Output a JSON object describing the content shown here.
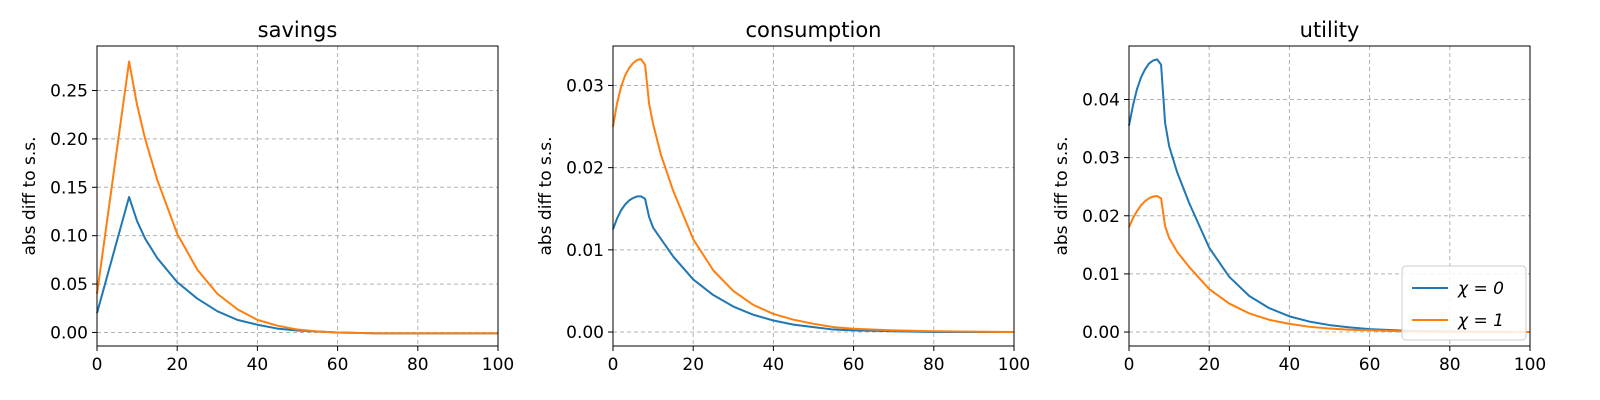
{
  "colors": {
    "chi0": "#1f77b4",
    "chi1": "#ff7f0e",
    "grid": "#b0b0b0"
  },
  "legend": {
    "placement": "bottom-right of third panel",
    "entries": [
      "χ = 0",
      "χ = 1"
    ]
  },
  "chart_data": [
    {
      "type": "line",
      "title": "savings",
      "xlabel": "",
      "ylabel": "abs diff to s.s.",
      "xlim": [
        0,
        100
      ],
      "ylim": [
        -0.014,
        0.296
      ],
      "xticks": [
        0,
        20,
        40,
        60,
        80,
        100
      ],
      "yticks": [
        0.0,
        0.05,
        0.1,
        0.15,
        0.2,
        0.25
      ],
      "ytick_labels": [
        "0.00",
        "0.05",
        "0.10",
        "0.15",
        "0.20",
        "0.25"
      ],
      "grid": true,
      "series": [
        {
          "name": "χ = 0",
          "color_key": "chi0",
          "points": [
            [
              0,
              0.02
            ],
            [
              2,
              0.05
            ],
            [
              4,
              0.08
            ],
            [
              6,
              0.11
            ],
            [
              8,
              0.14
            ],
            [
              10,
              0.115
            ],
            [
              12,
              0.097
            ],
            [
              15,
              0.077
            ],
            [
              20,
              0.052
            ],
            [
              25,
              0.035
            ],
            [
              30,
              0.022
            ],
            [
              35,
              0.013
            ],
            [
              40,
              0.008
            ],
            [
              45,
              0.004
            ],
            [
              50,
              0.002
            ],
            [
              60,
              0.0
            ],
            [
              70,
              -0.001
            ],
            [
              80,
              -0.001
            ],
            [
              100,
              -0.001
            ]
          ]
        },
        {
          "name": "χ = 1",
          "color_key": "chi1",
          "points": [
            [
              0,
              0.04
            ],
            [
              2,
              0.1
            ],
            [
              4,
              0.16
            ],
            [
              6,
              0.22
            ],
            [
              8,
              0.28
            ],
            [
              10,
              0.235
            ],
            [
              12,
              0.2
            ],
            [
              15,
              0.158
            ],
            [
              20,
              0.102
            ],
            [
              25,
              0.065
            ],
            [
              30,
              0.04
            ],
            [
              35,
              0.024
            ],
            [
              40,
              0.013
            ],
            [
              45,
              0.007
            ],
            [
              50,
              0.003
            ],
            [
              55,
              0.001
            ],
            [
              60,
              0.0
            ],
            [
              70,
              -0.001
            ],
            [
              80,
              -0.001
            ],
            [
              100,
              -0.001
            ]
          ]
        }
      ]
    },
    {
      "type": "line",
      "title": "consumption",
      "xlabel": "",
      "ylabel": "abs diff to s.s.",
      "xlim": [
        0,
        100
      ],
      "ylim": [
        -0.0017,
        0.0348
      ],
      "xticks": [
        0,
        20,
        40,
        60,
        80,
        100
      ],
      "yticks": [
        0.0,
        0.01,
        0.02,
        0.03
      ],
      "ytick_labels": [
        "0.00",
        "0.01",
        "0.02",
        "0.03"
      ],
      "grid": true,
      "series": [
        {
          "name": "χ = 0",
          "color_key": "chi0",
          "points": [
            [
              0,
              0.0125
            ],
            [
              1,
              0.0138
            ],
            [
              2,
              0.0148
            ],
            [
              3,
              0.0155
            ],
            [
              4,
              0.016
            ],
            [
              5,
              0.0163
            ],
            [
              6,
              0.0165
            ],
            [
              7,
              0.0165
            ],
            [
              8,
              0.0162
            ],
            [
              9,
              0.014
            ],
            [
              10,
              0.0127
            ],
            [
              12,
              0.0113
            ],
            [
              15,
              0.0092
            ],
            [
              20,
              0.0064
            ],
            [
              25,
              0.0045
            ],
            [
              30,
              0.0031
            ],
            [
              35,
              0.0021
            ],
            [
              40,
              0.0014
            ],
            [
              45,
              0.0009
            ],
            [
              50,
              0.0006
            ],
            [
              55,
              0.0003
            ],
            [
              60,
              0.0002
            ],
            [
              70,
              0.0001
            ],
            [
              80,
              0.0
            ],
            [
              100,
              0.0
            ]
          ]
        },
        {
          "name": "χ = 1",
          "color_key": "chi1",
          "points": [
            [
              0,
              0.025
            ],
            [
              1,
              0.0278
            ],
            [
              2,
              0.0298
            ],
            [
              3,
              0.0312
            ],
            [
              4,
              0.0321
            ],
            [
              5,
              0.0327
            ],
            [
              6,
              0.0331
            ],
            [
              7,
              0.0332
            ],
            [
              8,
              0.0325
            ],
            [
              9,
              0.0278
            ],
            [
              10,
              0.0253
            ],
            [
              12,
              0.0215
            ],
            [
              15,
              0.0172
            ],
            [
              20,
              0.0113
            ],
            [
              25,
              0.0075
            ],
            [
              30,
              0.005
            ],
            [
              35,
              0.0033
            ],
            [
              40,
              0.0022
            ],
            [
              45,
              0.0015
            ],
            [
              50,
              0.001
            ],
            [
              55,
              0.0006
            ],
            [
              60,
              0.0004
            ],
            [
              70,
              0.0002
            ],
            [
              80,
              0.0001
            ],
            [
              100,
              0.0
            ]
          ]
        }
      ]
    },
    {
      "type": "line",
      "title": "utility",
      "xlabel": "",
      "ylabel": "abs diff to s.s.",
      "xlim": [
        0,
        100
      ],
      "ylim": [
        -0.0024,
        0.0492
      ],
      "xticks": [
        0,
        20,
        40,
        60,
        80,
        100
      ],
      "yticks": [
        0.0,
        0.01,
        0.02,
        0.03,
        0.04
      ],
      "ytick_labels": [
        "0.00",
        "0.01",
        "0.02",
        "0.03",
        "0.04"
      ],
      "grid": true,
      "series": [
        {
          "name": "χ = 0",
          "color_key": "chi0",
          "points": [
            [
              0,
              0.0355
            ],
            [
              1,
              0.039
            ],
            [
              2,
              0.0418
            ],
            [
              3,
              0.0438
            ],
            [
              4,
              0.0452
            ],
            [
              5,
              0.0462
            ],
            [
              6,
              0.0467
            ],
            [
              7,
              0.0469
            ],
            [
              8,
              0.046
            ],
            [
              9,
              0.036
            ],
            [
              10,
              0.032
            ],
            [
              12,
              0.0275
            ],
            [
              15,
              0.0222
            ],
            [
              20,
              0.0145
            ],
            [
              25,
              0.0095
            ],
            [
              30,
              0.0062
            ],
            [
              35,
              0.0041
            ],
            [
              40,
              0.0027
            ],
            [
              45,
              0.0018
            ],
            [
              50,
              0.0012
            ],
            [
              55,
              0.0008
            ],
            [
              60,
              0.0005
            ],
            [
              70,
              0.0002
            ],
            [
              80,
              0.0001
            ],
            [
              100,
              0.0
            ]
          ]
        },
        {
          "name": "χ = 1",
          "color_key": "chi1",
          "points": [
            [
              0,
              0.018
            ],
            [
              1,
              0.0196
            ],
            [
              2,
              0.0208
            ],
            [
              3,
              0.0218
            ],
            [
              4,
              0.0225
            ],
            [
              5,
              0.023
            ],
            [
              6,
              0.0233
            ],
            [
              7,
              0.0234
            ],
            [
              8,
              0.023
            ],
            [
              9,
              0.0182
            ],
            [
              10,
              0.0162
            ],
            [
              12,
              0.0138
            ],
            [
              15,
              0.0112
            ],
            [
              20,
              0.0074
            ],
            [
              25,
              0.0049
            ],
            [
              30,
              0.0032
            ],
            [
              35,
              0.0021
            ],
            [
              40,
              0.0014
            ],
            [
              45,
              0.0009
            ],
            [
              50,
              0.0006
            ],
            [
              55,
              0.0004
            ],
            [
              60,
              0.0003
            ],
            [
              70,
              0.0001
            ],
            [
              80,
              0.0
            ],
            [
              100,
              0.0
            ]
          ]
        }
      ]
    }
  ]
}
